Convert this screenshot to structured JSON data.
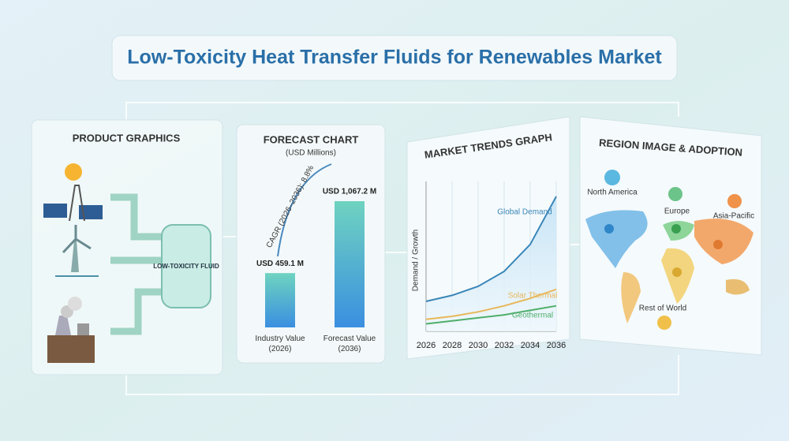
{
  "title": "Low-Toxicity Heat Transfer Fluids for Renewables Market",
  "product_panel": {
    "title": "PRODUCT GRAPHICS",
    "tank_label": "LOW-TOXICITY FLUID"
  },
  "region_panel": {
    "title": "REGION IMAGE & ADOPTION",
    "regions": [
      "North America",
      "Europe",
      "Asia-Pacific",
      "Rest of World"
    ]
  },
  "chart_data": [
    {
      "type": "bar",
      "title": "FORECAST CHART",
      "subtitle": "(USD Millions)",
      "categories": [
        "Industry Value (2026)",
        "Forecast Value (2036)"
      ],
      "values": [
        459.1,
        1067.2
      ],
      "value_labels": [
        "USD 459.1 M",
        "USD 1,067.2 M"
      ],
      "annotation": "CAGR (2026–2036): 8.8%",
      "color": "#3f8fdc"
    },
    {
      "type": "line",
      "title": "MARKET TRENDS GRAPH",
      "y_label": "Demand / Growth",
      "x": [
        2026,
        2028,
        2030,
        2032,
        2034,
        2036
      ],
      "xlim": [
        2026,
        2036
      ],
      "xticks": [
        2026,
        2028,
        2030,
        2032,
        2034,
        2036
      ],
      "ylim": [
        0,
        100
      ],
      "grid": true,
      "series": [
        {
          "name": "Global Demand",
          "color": "#3a86b8",
          "values": [
            20,
            24,
            30,
            40,
            58,
            90
          ]
        },
        {
          "name": "Solar Thermal",
          "color": "#e8b75a",
          "values": [
            8,
            10,
            13,
            17,
            22,
            28
          ]
        },
        {
          "name": "Geothermal",
          "color": "#4fae6a",
          "values": [
            5,
            7,
            9,
            11,
            14,
            17
          ]
        }
      ]
    }
  ]
}
